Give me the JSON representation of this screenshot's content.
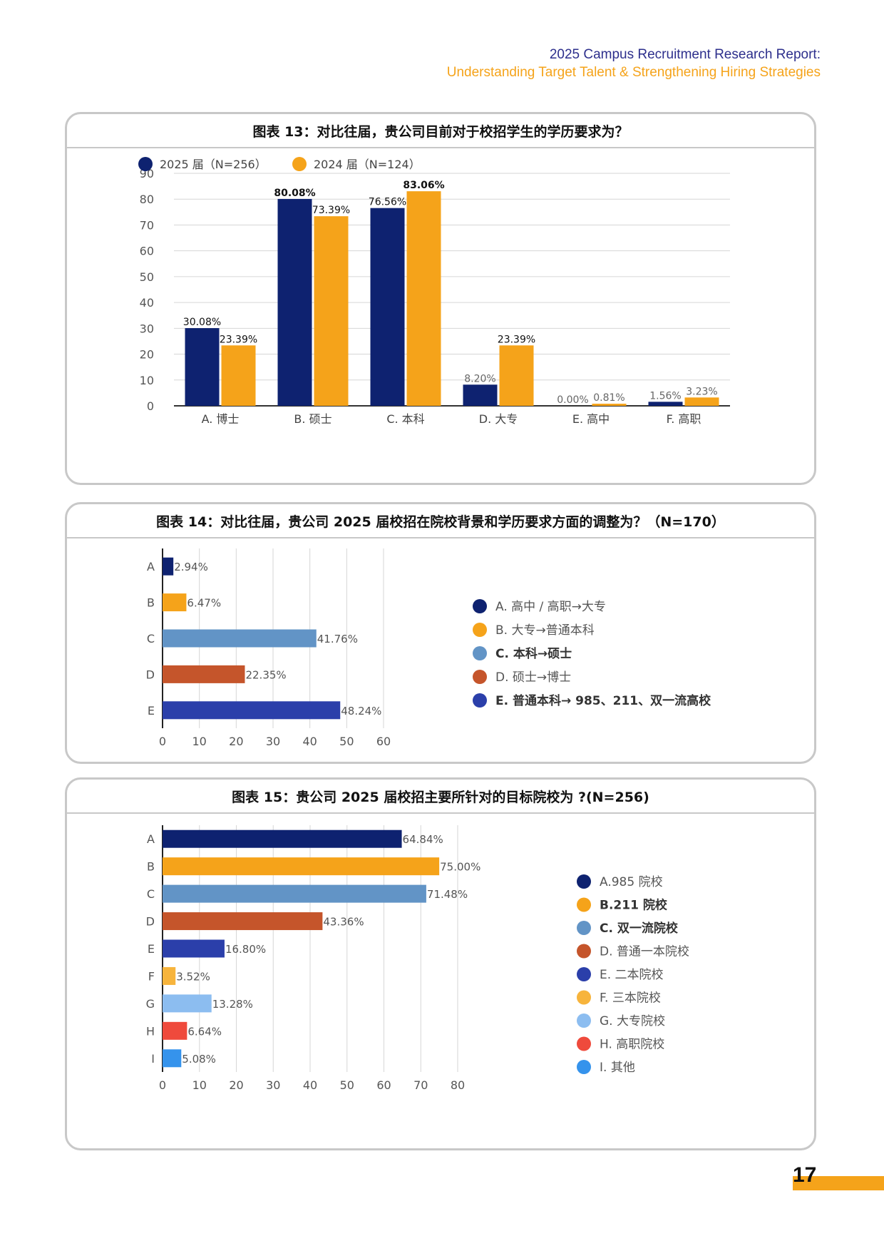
{
  "header": {
    "line1": "2025 Campus Recruitment Research Report:",
    "line2": "Understanding Target Talent & Strengthening Hiring Strategies"
  },
  "page_number": "17",
  "colors": {
    "navy": "#0e2270",
    "orange": "#f5a31a",
    "steel": "#6294c6",
    "rust": "#c5552b",
    "royal": "#2b3faa",
    "gold": "#f7b43c",
    "sky": "#8cbdf0",
    "red": "#ef4a3c",
    "azure": "#3593ec"
  },
  "chart_data": [
    {
      "type": "bar",
      "title": "图表 13：对比往届，贵公司目前对于校招学生的学历要求为？",
      "categories": [
        "A. 博士",
        "B. 硕士",
        "C. 本科",
        "D. 大专",
        "E. 高中",
        "F. 高职"
      ],
      "series": [
        {
          "name": "2025 届（N=256）",
          "color": "#0e2270",
          "values": [
            30.08,
            80.08,
            76.56,
            8.2,
            0.0,
            1.56
          ],
          "labels": [
            "30.08%",
            "80.08%",
            "76.56%",
            "8.20%",
            "0.00%",
            "1.56%"
          ]
        },
        {
          "name": "2024 届（N=124）",
          "color": "#f5a31a",
          "values": [
            23.39,
            73.39,
            83.06,
            23.39,
            0.81,
            3.23
          ],
          "labels": [
            "23.39%",
            "73.39%",
            "83.06%",
            "23.39%",
            "0.81%",
            "3.23%"
          ]
        }
      ],
      "ylim": [
        0,
        90
      ],
      "yticks": [
        "0",
        "10",
        "20",
        "30",
        "40",
        "50",
        "60",
        "70",
        "80",
        "90"
      ],
      "legend": "top-left",
      "grid": true
    },
    {
      "type": "bar",
      "orientation": "horizontal",
      "title": "图表 14：对比往届，贵公司 2025 届校招在院校背景和学历要求方面的调整为？（N=170）",
      "categories": [
        "A",
        "B",
        "C",
        "D",
        "E"
      ],
      "values": [
        2.94,
        6.47,
        41.76,
        22.35,
        48.24
      ],
      "labels": [
        "2.94%",
        "6.47%",
        "41.76%",
        "22.35%",
        "48.24%"
      ],
      "colors": [
        "#0e2270",
        "#f5a31a",
        "#6294c6",
        "#c5552b",
        "#2b3faa"
      ],
      "legend_entries": [
        "A. 高中 / 高职→大专",
        "B. 大专→普通本科",
        "C. 本科→硕士",
        "D. 硕士→博士",
        "E. 普通本科→ 985、211、双一流高校"
      ],
      "legend_bold": [
        false,
        false,
        true,
        false,
        true
      ],
      "xlim": [
        0,
        60
      ],
      "xticks": [
        "0",
        "10",
        "20",
        "30",
        "40",
        "50",
        "60"
      ],
      "legend": "right",
      "grid": true
    },
    {
      "type": "bar",
      "orientation": "horizontal",
      "title": "图表 15：贵公司 2025 届校招主要所针对的目标院校为 ?(N=256)",
      "categories": [
        "A",
        "B",
        "C",
        "D",
        "E",
        "F",
        "G",
        "H",
        "I"
      ],
      "values": [
        64.84,
        75.0,
        71.48,
        43.36,
        16.8,
        3.52,
        13.28,
        6.64,
        5.08
      ],
      "labels": [
        "64.84%",
        "75.00%",
        "71.48%",
        "43.36%",
        "16.80%",
        "3.52%",
        "13.28%",
        "6.64%",
        "5.08%"
      ],
      "colors": [
        "#0e2270",
        "#f5a31a",
        "#6294c6",
        "#c5552b",
        "#2b3faa",
        "#f7b43c",
        "#8cbdf0",
        "#ef4a3c",
        "#3593ec"
      ],
      "legend_entries": [
        "A.985 院校",
        "B.211 院校",
        "C. 双一流院校",
        "D. 普通一本院校",
        "E. 二本院校",
        "F. 三本院校",
        "G. 大专院校",
        "H. 高职院校",
        "I. 其他"
      ],
      "legend_bold": [
        false,
        true,
        true,
        false,
        false,
        false,
        false,
        false,
        false
      ],
      "xlim": [
        0,
        80
      ],
      "xticks": [
        "0",
        "10",
        "20",
        "30",
        "40",
        "50",
        "60",
        "70",
        "80"
      ],
      "legend": "right",
      "grid": true
    }
  ]
}
